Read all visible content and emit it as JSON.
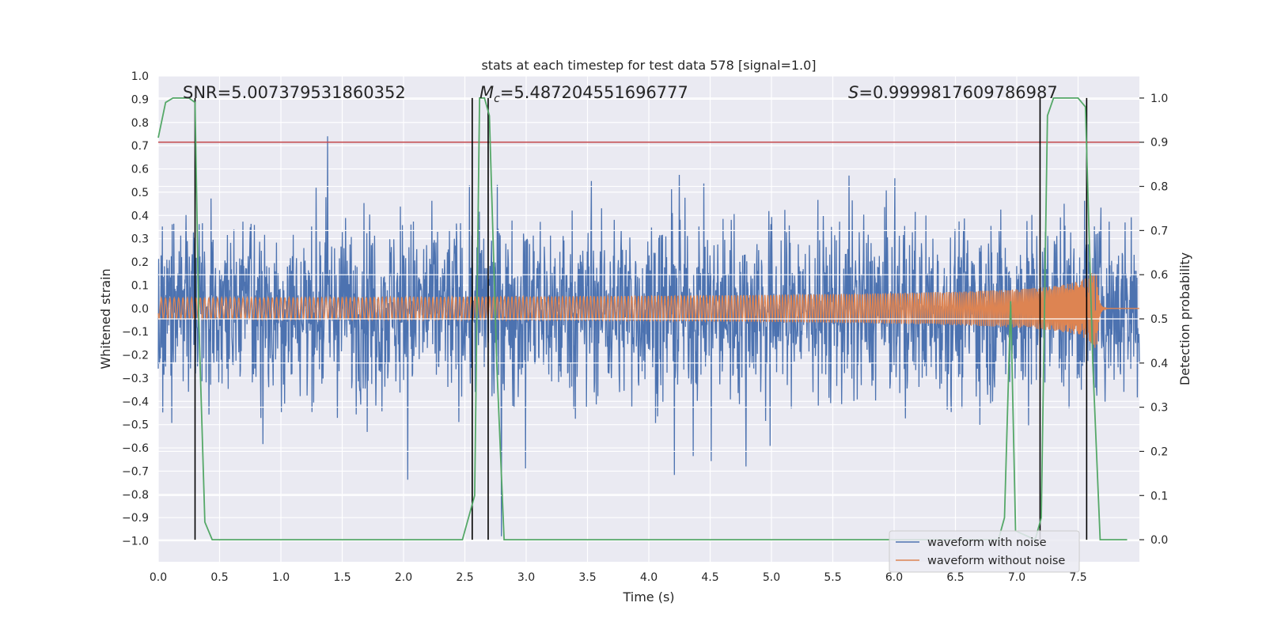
{
  "chart_data": {
    "type": "line",
    "title": "stats at each timestep for test data 578 [signal=1.0]",
    "xlabel": "Time (s)",
    "ylabel": "Whitened strain",
    "ylabel_right": "Detection probability",
    "xlim": [
      0.0,
      8.0
    ],
    "ylim": [
      -1.09,
      1.0
    ],
    "ylim_right": [
      -0.05,
      1.05
    ],
    "x_ticks": [
      0.0,
      0.5,
      1.0,
      1.5,
      2.0,
      2.5,
      3.0,
      3.5,
      4.0,
      4.5,
      5.0,
      5.5,
      6.0,
      6.5,
      7.0,
      7.5
    ],
    "x_tick_labels": [
      "0.0",
      "0.5",
      "1.0",
      "1.5",
      "2.0",
      "2.5",
      "3.0",
      "3.5",
      "4.0",
      "4.5",
      "5.0",
      "5.5",
      "6.0",
      "6.5",
      "7.0",
      "7.5"
    ],
    "y_ticks": [
      1.0,
      0.9,
      0.8,
      0.7,
      0.6,
      0.5,
      0.4,
      0.3,
      0.2,
      0.1,
      0.0,
      -0.1,
      -0.2,
      -0.3,
      -0.4,
      -0.5,
      -0.6,
      -0.7,
      -0.8,
      -0.9,
      -1.0
    ],
    "y_tick_labels": [
      "1.0",
      "0.9",
      "0.8",
      "0.7",
      "0.6",
      "0.5",
      "0.4",
      "0.3",
      "0.2",
      "0.1",
      "0.0",
      "−0.1",
      "−0.2",
      "−0.3",
      "−0.4",
      "−0.5",
      "−0.6",
      "−0.7",
      "−0.8",
      "−0.9",
      "−1.0"
    ],
    "y_right_ticks": [
      1.0,
      0.9,
      0.8,
      0.7,
      0.6,
      0.5,
      0.4,
      0.3,
      0.2,
      0.1,
      0.0
    ],
    "y_right_tick_labels": [
      "1.0",
      "0.9",
      "0.8",
      "0.7",
      "0.6",
      "0.5",
      "0.4",
      "0.3",
      "0.2",
      "0.1",
      "0.0"
    ],
    "annotations": {
      "snr": "SNR=5.007379531860352",
      "mc_symbol": "M",
      "mc_sub": "c",
      "mc_value": "=5.487204551696777",
      "s_symbol": "S",
      "s_value": "=0.9999817609786987"
    },
    "threshold": {
      "value_right": 0.9,
      "color": "#c44e52"
    },
    "detection_probability": {
      "color": "#55a868",
      "x": [
        0.0,
        0.06,
        0.12,
        0.25,
        0.3,
        0.33,
        0.38,
        0.44,
        2.48,
        2.58,
        2.62,
        2.66,
        2.7,
        2.76,
        2.82,
        6.85,
        6.9,
        6.95,
        6.99,
        7.15,
        7.2,
        7.25,
        7.3,
        7.5,
        7.56,
        7.62,
        7.68,
        7.75,
        7.9
      ],
      "y": [
        0.91,
        0.99,
        1.0,
        1.0,
        0.99,
        0.5,
        0.04,
        0.0,
        0.0,
        0.1,
        1.0,
        1.0,
        0.96,
        0.4,
        0.0,
        0.0,
        0.05,
        0.54,
        0.02,
        0.0,
        0.05,
        0.96,
        1.0,
        1.0,
        0.98,
        0.4,
        0.0,
        0.0,
        0.0
      ]
    },
    "vertical_markers_x": [
      0.3,
      2.56,
      2.69,
      7.19,
      7.57
    ],
    "series": [
      {
        "name": "waveform with noise",
        "color": "#4c72b0",
        "description": "noisy whitened strain, amplitude roughly ±0.6 with spikes to ±0.9"
      },
      {
        "name": "waveform without noise",
        "color": "#dd8452",
        "description": "chirp signal, amplitude growing from ~0.01 at t=0 to ~0.2 near t=7.65, merger then ringdown to zero"
      }
    ],
    "legend": {
      "location": "lower-right",
      "entries": [
        "waveform with noise",
        "waveform without noise"
      ]
    }
  }
}
